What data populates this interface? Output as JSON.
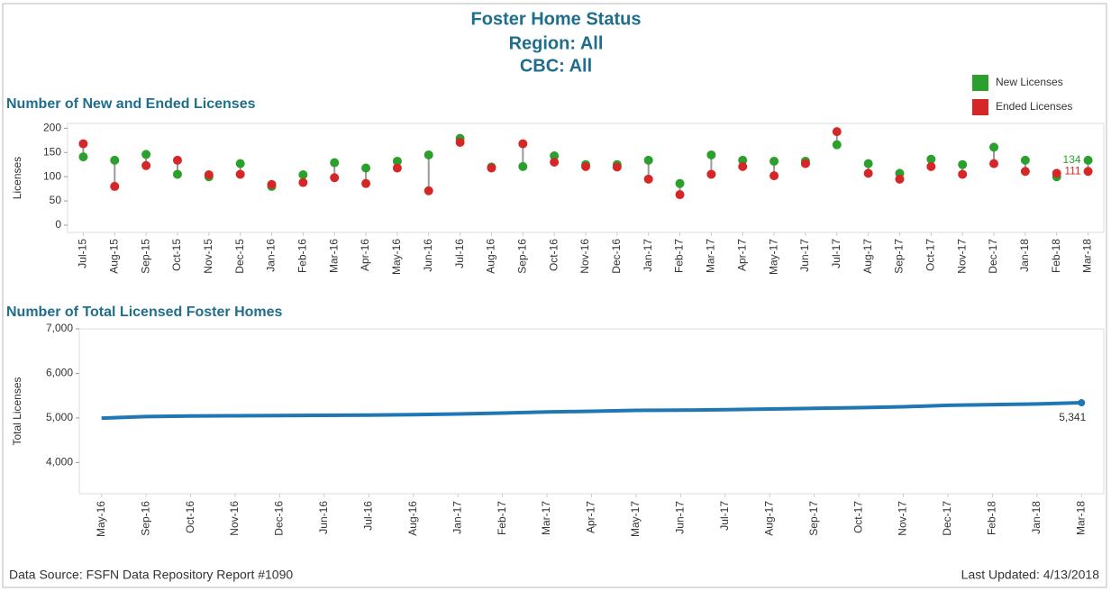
{
  "header": {
    "title": "Foster Home Status",
    "region": "Region: All",
    "cbc": "CBC: All"
  },
  "footer": {
    "source": "Data Source: FSFN Data Repository Report #1090",
    "updated": "Last Updated: 4/13/2018"
  },
  "chart_data": [
    {
      "type": "dumbbell",
      "title": "Number of New and Ended Licenses",
      "y_label": "Licenses",
      "categories": [
        "Jul-15",
        "Aug-15",
        "Sep-15",
        "Oct-15",
        "Nov-15",
        "Dec-15",
        "Jan-16",
        "Feb-16",
        "Mar-16",
        "Apr-16",
        "May-16",
        "Jun-16",
        "Jul-16",
        "Aug-16",
        "Sep-16",
        "Oct-16",
        "Nov-16",
        "Dec-16",
        "Jan-17",
        "Feb-17",
        "Mar-17",
        "Apr-17",
        "May-17",
        "Jun-17",
        "Jul-17",
        "Aug-17",
        "Sep-17",
        "Oct-17",
        "Nov-17",
        "Dec-17",
        "Jan-18",
        "Feb-18",
        "Mar-18"
      ],
      "series": [
        {
          "name": "New Licenses",
          "color": "#2ca02c",
          "values": [
            141,
            134,
            146,
            105,
            100,
            127,
            80,
            104,
            129,
            118,
            132,
            145,
            179,
            120,
            121,
            143,
            125,
            125,
            134,
            86,
            145,
            134,
            132,
            132,
            166,
            127,
            107,
            136,
            125,
            161,
            134,
            100,
            134
          ]
        },
        {
          "name": "Ended Licenses",
          "color": "#d62728",
          "values": [
            168,
            80,
            123,
            134,
            104,
            105,
            84,
            88,
            98,
            86,
            118,
            71,
            171,
            118,
            168,
            130,
            121,
            120,
            95,
            63,
            105,
            121,
            102,
            127,
            193,
            107,
            95,
            121,
            105,
            127,
            111,
            107,
            111
          ]
        }
      ],
      "connector_color": "#999999",
      "ylim": [
        -15,
        210
      ],
      "yticks": [
        0,
        50,
        100,
        150,
        200
      ],
      "legend": "top-right"
    },
    {
      "type": "line",
      "title": "Number of Total Licensed Foster Homes",
      "y_label": "Total Licenses",
      "categories": [
        "May-16",
        "Sep-16",
        "Oct-16",
        "Nov-16",
        "Dec-16",
        "Jun-16",
        "Jul-16",
        "Aug-16",
        "Jan-17",
        "Feb-17",
        "Mar-17",
        "Apr-17",
        "May-17",
        "Jun-17",
        "Jul-17",
        "Aug-17",
        "Sep-17",
        "Oct-17",
        "Nov-17",
        "Dec-17",
        "Feb-18",
        "Jan-18",
        "Mar-18"
      ],
      "series": [
        {
          "name": "Total Licenses",
          "color": "#1f77b4",
          "values": [
            4995,
            5030,
            5045,
            5050,
            5055,
            5060,
            5065,
            5075,
            5090,
            5110,
            5135,
            5150,
            5170,
            5175,
            5185,
            5200,
            5215,
            5230,
            5250,
            5285,
            5300,
            5315,
            5341
          ],
          "value_labels": [
            null,
            null,
            null,
            null,
            null,
            null,
            null,
            null,
            null,
            null,
            null,
            null,
            null,
            null,
            null,
            null,
            null,
            null,
            null,
            null,
            null,
            null,
            "5,341"
          ]
        }
      ],
      "ylim": [
        3300,
        7000
      ],
      "yticks": [
        {
          "value": 4000,
          "label": "4,000"
        },
        {
          "value": 5000,
          "label": "5,000"
        },
        {
          "value": 6000,
          "label": "6,000"
        },
        {
          "value": 7000,
          "label": "7,000"
        }
      ]
    }
  ]
}
